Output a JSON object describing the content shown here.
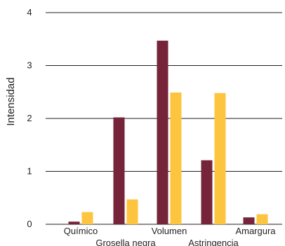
{
  "chart_data": {
    "type": "bar",
    "title": "",
    "xlabel": "",
    "ylabel": "Intensidad",
    "ylim": [
      0,
      4
    ],
    "yticks": [
      0,
      1,
      2,
      3,
      4
    ],
    "grid": true,
    "categories": [
      "Químico",
      "Grosella negra",
      "Volumen",
      "Astringencia",
      "Amargura"
    ],
    "series": [
      {
        "color": "#76243a",
        "values": [
          0.05,
          2.02,
          3.47,
          1.21,
          0.13
        ]
      },
      {
        "color": "#fdc43f",
        "values": [
          0.23,
          0.47,
          2.49,
          2.48,
          0.19
        ]
      }
    ]
  }
}
